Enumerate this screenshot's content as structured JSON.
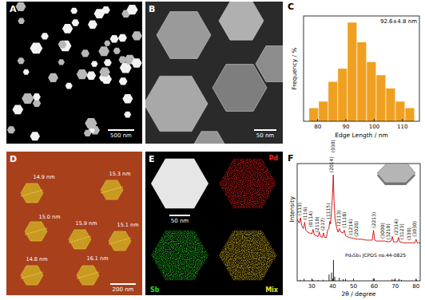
{
  "panels": {
    "A": {
      "label": "A",
      "scale_bar": "500 nm"
    },
    "B": {
      "label": "B",
      "scale_bar": "50 nm"
    },
    "C": {
      "label": "C"
    },
    "D": {
      "label": "D",
      "scale_bar": "200 nm",
      "heights": [
        "14.9 nm",
        "15.3 nm",
        "15.0 nm",
        "15.9 nm",
        "15.1 nm",
        "16.1 nm",
        "14.8 nm"
      ]
    },
    "E": {
      "label": "E",
      "scale_bar": "50 nm",
      "channels": [
        "Pd",
        "Sb",
        "Mix"
      ]
    },
    "F": {
      "label": "F"
    }
  },
  "chart_data": [
    {
      "type": "histogram",
      "annotation": "92.6±4.8 nm",
      "x_label": "Edge Length / nm",
      "y_label": "Frequency / %",
      "bins": [
        77,
        80.4,
        83.8,
        87.2,
        90.6,
        94,
        97.4,
        100.8,
        104.2,
        107.6,
        111,
        114.4
      ],
      "counts": [
        2,
        3,
        6,
        8,
        15,
        12,
        9,
        7,
        5,
        3,
        2
      ],
      "color": "#f0a020",
      "xlim": [
        75,
        116
      ],
      "xticks": [
        80,
        90,
        100,
        110
      ],
      "ylim": [
        0,
        16
      ],
      "tick_labels": "x"
    },
    {
      "type": "line",
      "x_label": "2θ / degree",
      "y_label": "Intensity",
      "color": "#d40000",
      "x": [
        23,
        24,
        24.6,
        25.2,
        26,
        26.6,
        27.2,
        28,
        29,
        30,
        30.6,
        31.2,
        32,
        33,
        33.6,
        34.2,
        35,
        35.6,
        36.2,
        37,
        37.6,
        38.2,
        38.6,
        39,
        39.6,
        40,
        40.3,
        40.7,
        41.2,
        42,
        42.6,
        43.2,
        44,
        45,
        45.6,
        46.2,
        47,
        48,
        50,
        52,
        54,
        56,
        58,
        59,
        59.6,
        60.2,
        61,
        63,
        65,
        67,
        68,
        68.6,
        69.2,
        70,
        71,
        71.6,
        72.2,
        74,
        76,
        78,
        79.5,
        80,
        80.6,
        82
      ],
      "values": [
        40,
        36,
        42,
        33,
        30,
        37,
        28,
        26,
        25,
        24,
        29,
        23,
        22,
        21,
        26,
        21,
        20,
        25,
        20,
        20,
        28,
        30,
        38,
        35,
        55,
        70,
        90,
        60,
        40,
        30,
        26,
        30,
        26,
        25,
        28,
        22,
        21,
        20,
        19,
        18,
        18,
        17,
        17,
        17,
        28,
        17,
        16,
        16,
        16,
        15,
        16,
        21,
        15,
        15,
        15,
        20,
        15,
        14,
        14,
        14,
        14,
        18,
        14,
        14
      ],
      "xlim": [
        23,
        82
      ],
      "xticks": [
        30,
        40,
        50,
        60,
        70,
        80
      ],
      "ylim": [
        0,
        100
      ],
      "tick_labels": "x",
      "annotations": [
        {
          "text": "(113)",
          "x": 24
        },
        {
          "text": "(116)",
          "x": 26.8
        },
        {
          "text": "(0114)",
          "x": 29.6
        },
        {
          "text": "(2110)",
          "x": 32.4
        },
        {
          "text": "(217)",
          "x": 35.2
        },
        {
          "text": "(1115)",
          "x": 38
        },
        {
          "text": "(2014)",
          "x": 39.5
        },
        {
          "text": "(030)",
          "x": 40.3
        },
        {
          "text": "(2113)",
          "x": 43
        },
        {
          "text": "(1118)",
          "x": 45.8
        },
        {
          "text": "(1214)",
          "x": 48.6
        },
        {
          "text": "(2026)",
          "x": 51.4
        },
        {
          "text": "(2213)",
          "x": 59.6
        },
        {
          "text": "(3000)",
          "x": 64
        },
        {
          "text": "(3210)",
          "x": 66.8
        },
        {
          "text": "(2314)",
          "x": 70.5
        },
        {
          "text": "(3123)",
          "x": 73.3
        },
        {
          "text": "(330)",
          "x": 76.5
        },
        {
          "text": "(3030)",
          "x": 79.5
        }
      ],
      "reference": {
        "label": "Pd₈Sb₃ JCPDS no.44-0825",
        "color": "#000000",
        "ylim": [
          0,
          100
        ],
        "x": [
          24.5,
          26.3,
          30.5,
          33,
          35.5,
          38.3,
          39.5,
          40.4,
          41,
          43.2,
          45,
          46.2,
          59.5,
          68.5,
          69.5,
          71.8,
          73,
          80.2
        ],
        "values": [
          5,
          10,
          6,
          4,
          5,
          30,
          40,
          100,
          20,
          15,
          8,
          10,
          12,
          8,
          6,
          10,
          5,
          6
        ]
      }
    }
  ]
}
